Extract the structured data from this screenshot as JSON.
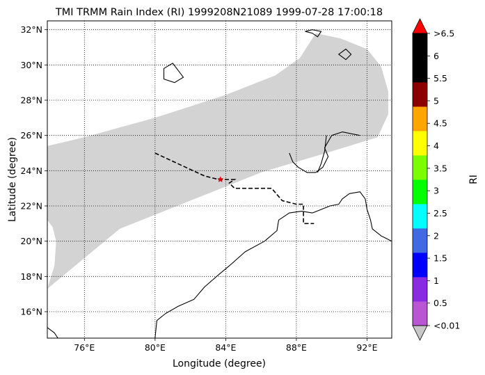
{
  "title": "TMI TRMM Rain Index (RI) 1999208N21089 1999-07-28 17:00:18",
  "axes": {
    "xlabel": "Longitude (degree)",
    "ylabel": "Latitude (degree)",
    "xlim": [
      73.9,
      93.4
    ],
    "ylim": [
      14.5,
      32.5
    ],
    "xticks": [
      {
        "v": 76,
        "t": "76°E"
      },
      {
        "v": 80,
        "t": "80°E"
      },
      {
        "v": 84,
        "t": "84°E"
      },
      {
        "v": 88,
        "t": "88°E"
      },
      {
        "v": 92,
        "t": "92°E"
      }
    ],
    "yticks": [
      {
        "v": 16,
        "t": "16°N"
      },
      {
        "v": 18,
        "t": "18°N"
      },
      {
        "v": 20,
        "t": "20°N"
      },
      {
        "v": 22,
        "t": "22°N"
      },
      {
        "v": 24,
        "t": "24°N"
      },
      {
        "v": 26,
        "t": "26°N"
      },
      {
        "v": 28,
        "t": "28°N"
      },
      {
        "v": 30,
        "t": "30°N"
      },
      {
        "v": 32,
        "t": "32°N"
      }
    ],
    "grid": true
  },
  "colorbar": {
    "label": "RI",
    "under_color": "#c8c8c8",
    "over_color": "#ff0000",
    "bins": [
      "#ba55d3",
      "#8a2be2",
      "#0000ff",
      "#4169e1",
      "#00ffff",
      "#00ff00",
      "#7cfc00",
      "#ffff00",
      "#ffa500",
      "#8b0000",
      "#000000",
      "#000000"
    ],
    "ticks": [
      "<0.01",
      "0.5",
      "1",
      "1.5",
      "2",
      "2.5",
      "3",
      "3.5",
      "4",
      "4.5",
      "5",
      "5.5",
      "6",
      ">6.5"
    ]
  },
  "swath": {
    "color": "#d3d3d3",
    "outline": [
      [
        73.9,
        25.4
      ],
      [
        76.0,
        25.9
      ],
      [
        80.0,
        27.0
      ],
      [
        84.0,
        28.3
      ],
      [
        86.8,
        29.4
      ],
      [
        88.2,
        30.4
      ],
      [
        89.1,
        31.8
      ],
      [
        90.5,
        31.5
      ],
      [
        92.0,
        30.9
      ],
      [
        92.8,
        29.9
      ],
      [
        93.2,
        28.5
      ],
      [
        93.2,
        27.2
      ],
      [
        92.6,
        25.9
      ],
      [
        90.0,
        25.1
      ],
      [
        86.0,
        23.9
      ],
      [
        82.0,
        22.3
      ],
      [
        78.0,
        20.7
      ],
      [
        73.9,
        17.3
      ],
      [
        74.3,
        18.6
      ],
      [
        74.4,
        20.0
      ],
      [
        74.2,
        20.8
      ],
      [
        73.9,
        21.2
      ]
    ]
  },
  "storm_track": {
    "points": [
      [
        80.0,
        25.0
      ],
      [
        81.5,
        24.3
      ],
      [
        82.8,
        23.7
      ],
      [
        83.6,
        23.5
      ],
      [
        84.5,
        23.5
      ],
      [
        84.2,
        23.3
      ],
      [
        84.5,
        23.0
      ],
      [
        86.6,
        23.0
      ],
      [
        87.2,
        22.3
      ],
      [
        88.0,
        22.1
      ],
      [
        88.4,
        22.1
      ],
      [
        88.4,
        21.0
      ],
      [
        89.0,
        21.0
      ]
    ],
    "current_position": [
      83.7,
      23.5
    ]
  },
  "coastlines": [
    [
      [
        73.9,
        15.1
      ],
      [
        74.3,
        14.8
      ],
      [
        74.5,
        14.5
      ]
    ],
    [
      [
        80.0,
        14.5
      ],
      [
        80.1,
        15.5
      ],
      [
        80.6,
        15.9
      ],
      [
        81.3,
        16.3
      ],
      [
        82.2,
        16.7
      ],
      [
        82.8,
        17.4
      ],
      [
        83.6,
        18.1
      ],
      [
        84.2,
        18.6
      ],
      [
        85.1,
        19.4
      ],
      [
        86.2,
        20.0
      ],
      [
        86.9,
        20.6
      ],
      [
        87.0,
        21.2
      ],
      [
        87.6,
        21.6
      ],
      [
        88.3,
        21.7
      ],
      [
        88.9,
        21.6
      ],
      [
        89.4,
        21.8
      ],
      [
        89.9,
        22.0
      ],
      [
        90.4,
        22.1
      ],
      [
        90.6,
        22.4
      ],
      [
        91.0,
        22.7
      ],
      [
        91.6,
        22.8
      ],
      [
        91.9,
        22.4
      ],
      [
        92.0,
        21.8
      ],
      [
        92.2,
        21.2
      ],
      [
        92.3,
        20.7
      ],
      [
        92.8,
        20.3
      ],
      [
        93.2,
        20.1
      ],
      [
        93.4,
        20.0
      ]
    ],
    [
      [
        87.6,
        25.0
      ],
      [
        87.8,
        24.5
      ],
      [
        88.1,
        24.2
      ],
      [
        88.6,
        23.9
      ],
      [
        89.1,
        23.9
      ],
      [
        89.5,
        24.2
      ],
      [
        89.8,
        24.8
      ],
      [
        89.6,
        25.3
      ],
      [
        90.0,
        26.0
      ],
      [
        90.6,
        26.2
      ],
      [
        91.6,
        26.0
      ]
    ],
    [
      [
        89.2,
        23.9
      ],
      [
        89.4,
        24.4
      ],
      [
        89.6,
        25.1
      ],
      [
        89.7,
        26.0
      ]
    ]
  ],
  "islands": [
    [
      [
        88.5,
        31.9
      ],
      [
        88.9,
        31.8
      ],
      [
        89.2,
        31.6
      ],
      [
        89.4,
        31.9
      ],
      [
        88.9,
        32.0
      ],
      [
        88.5,
        31.9
      ]
    ],
    [
      [
        80.5,
        29.2
      ],
      [
        81.1,
        29.0
      ],
      [
        81.6,
        29.3
      ],
      [
        81.0,
        30.1
      ],
      [
        80.5,
        29.8
      ],
      [
        80.5,
        29.2
      ]
    ],
    [
      [
        90.4,
        30.6
      ],
      [
        90.8,
        30.9
      ],
      [
        91.1,
        30.6
      ],
      [
        90.8,
        30.3
      ],
      [
        90.4,
        30.6
      ]
    ]
  ]
}
